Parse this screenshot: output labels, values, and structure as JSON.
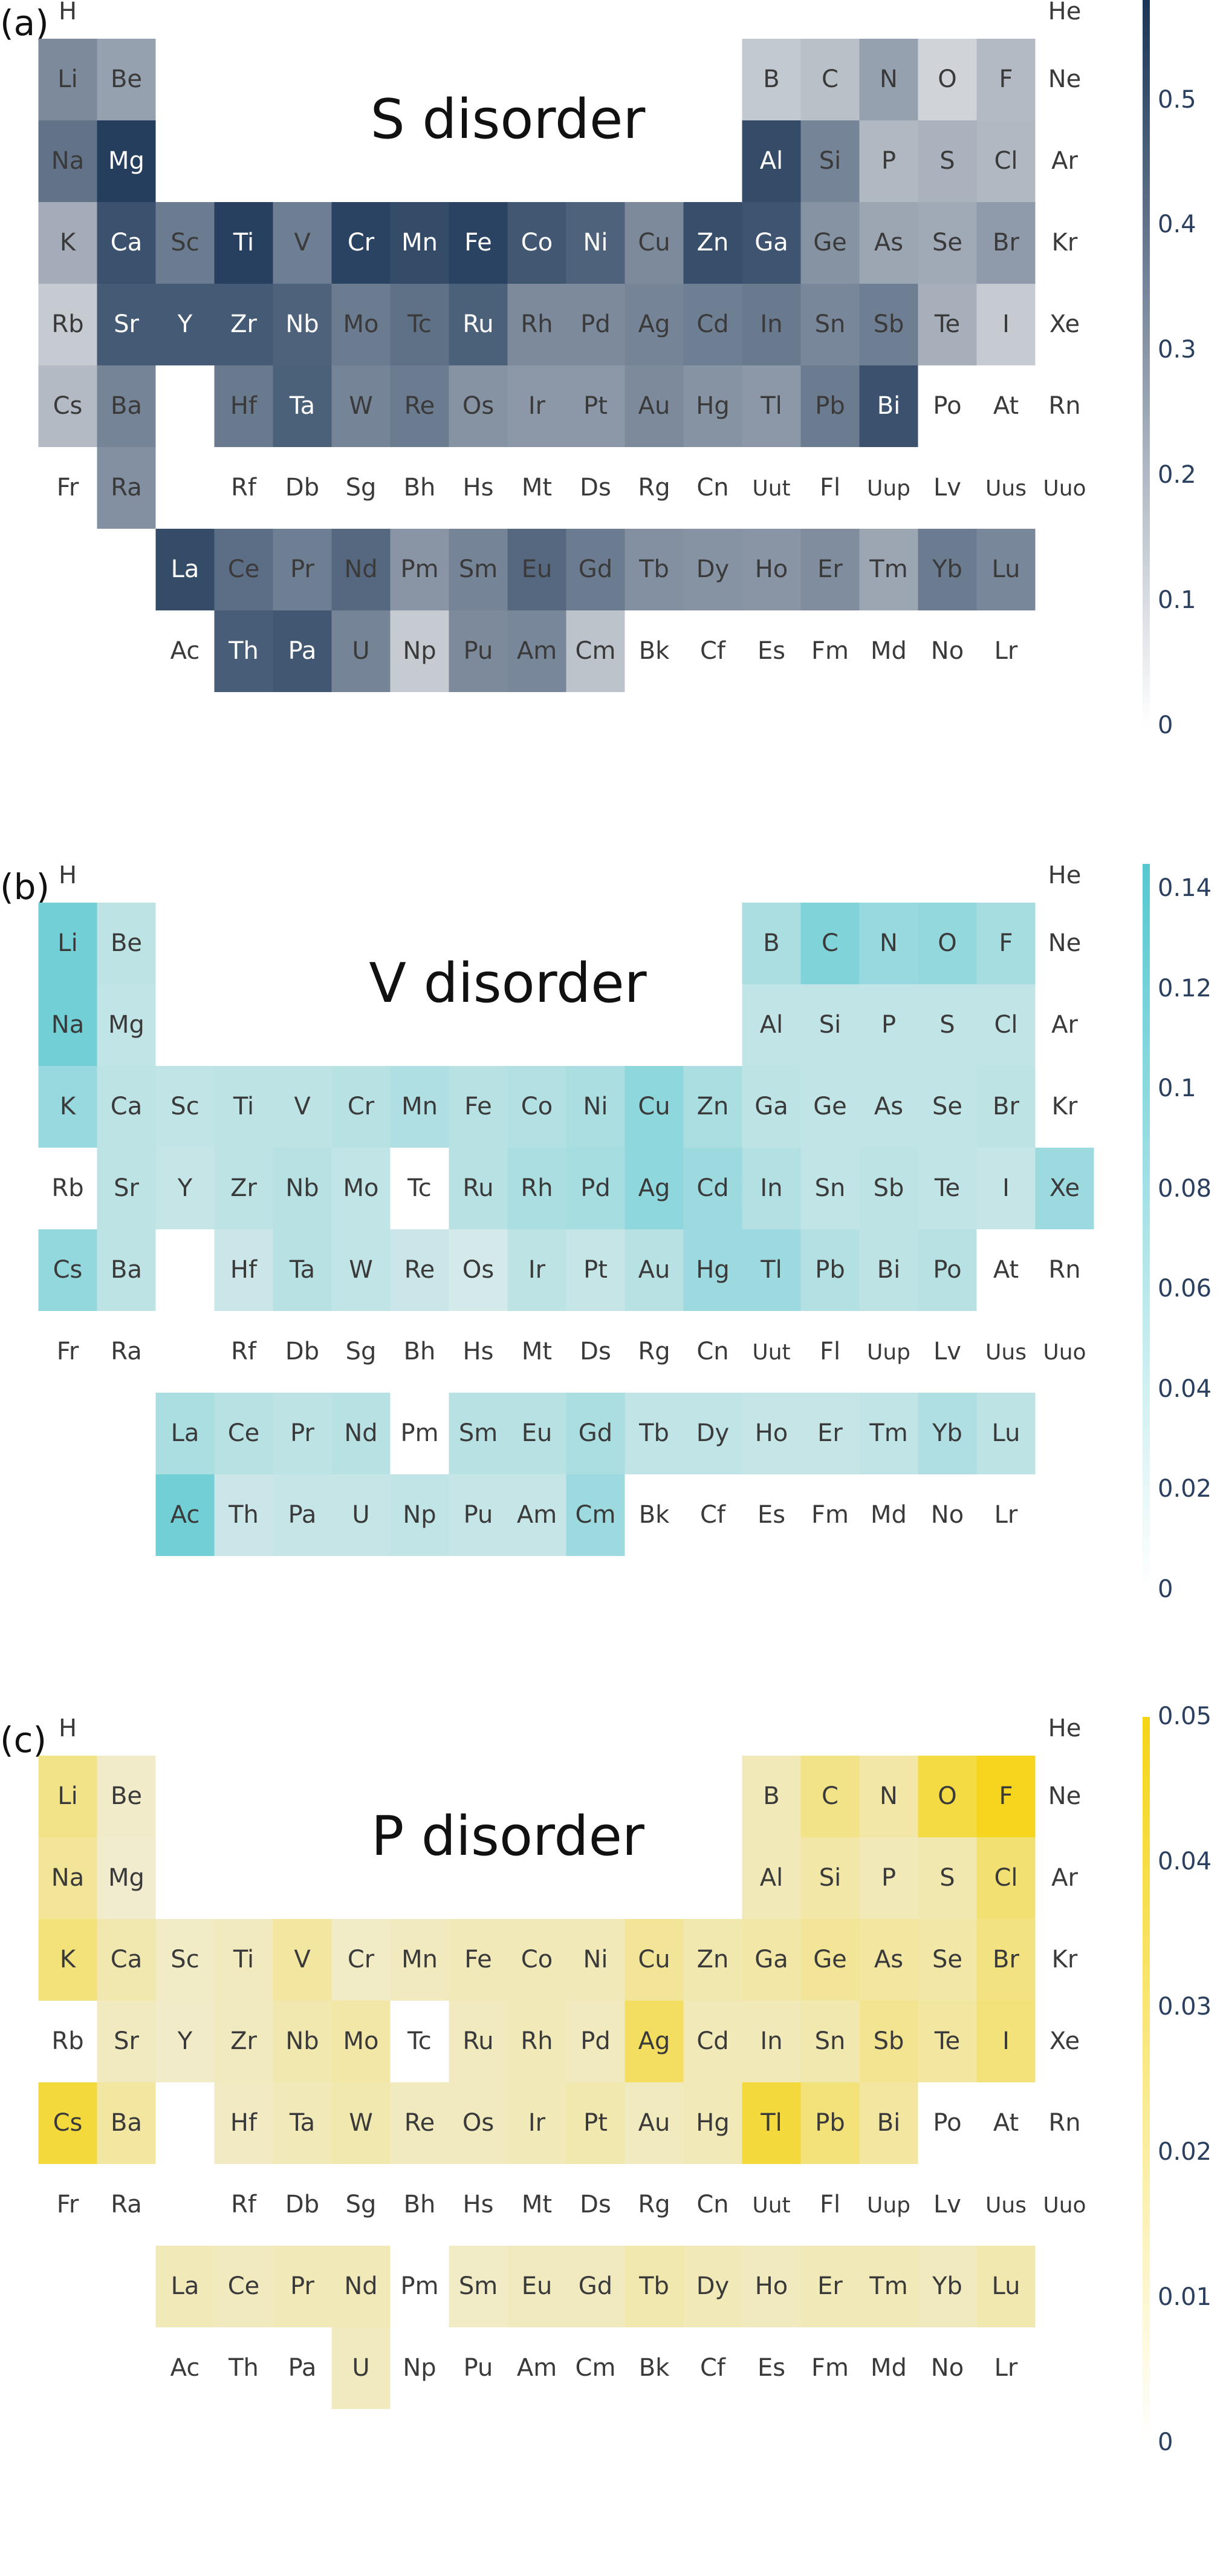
{
  "elements_order": [
    "H",
    "He",
    "Li",
    "Be",
    "B",
    "C",
    "N",
    "O",
    "F",
    "Ne",
    "Na",
    "Mg",
    "Al",
    "Si",
    "P",
    "S",
    "Cl",
    "Ar",
    "K",
    "Ca",
    "Sc",
    "Ti",
    "V",
    "Cr",
    "Mn",
    "Fe",
    "Co",
    "Ni",
    "Cu",
    "Zn",
    "Ga",
    "Ge",
    "As",
    "Se",
    "Br",
    "Kr",
    "Rb",
    "Sr",
    "Y",
    "Zr",
    "Nb",
    "Mo",
    "Tc",
    "Ru",
    "Rh",
    "Pd",
    "Ag",
    "Cd",
    "In",
    "Sn",
    "Sb",
    "Te",
    "I",
    "Xe",
    "Cs",
    "Ba",
    "Hf",
    "Ta",
    "W",
    "Re",
    "Os",
    "Ir",
    "Pt",
    "Au",
    "Hg",
    "Tl",
    "Pb",
    "Bi",
    "Po",
    "At",
    "Rn",
    "Fr",
    "Ra",
    "Rf",
    "Db",
    "Sg",
    "Bh",
    "Hs",
    "Mt",
    "Ds",
    "Rg",
    "Cn",
    "Uut",
    "Fl",
    "Uup",
    "Lv",
    "Uus",
    "Uuo",
    "La",
    "Ce",
    "Pr",
    "Nd",
    "Pm",
    "Sm",
    "Eu",
    "Gd",
    "Tb",
    "Dy",
    "Ho",
    "Er",
    "Tm",
    "Yb",
    "Lu",
    "Ac",
    "Th",
    "Pa",
    "U",
    "Np",
    "Pu",
    "Am",
    "Cm",
    "Bk",
    "Cf",
    "Es",
    "Fm",
    "Md",
    "No",
    "Lr"
  ],
  "chart_data": [
    {
      "type": "heatmap",
      "panel_label": "(a)",
      "title": "S disorder",
      "color": "#1b3556",
      "vmin": 0,
      "vmax": 0.58,
      "colorbar_ticks": [
        "0",
        "0.1",
        "0.2",
        "0.3",
        "0.4",
        "0.5"
      ],
      "colorbar_tick_values": [
        0,
        0.1,
        0.2,
        0.3,
        0.4,
        0.5
      ],
      "values": {
        "Li": 0.28,
        "Be": 0.2,
        "B": 0.06,
        "C": 0.09,
        "N": 0.2,
        "O": 0.02,
        "F": 0.11,
        "Na": 0.36,
        "Mg": 0.55,
        "Al": 0.5,
        "Si": 0.3,
        "P": 0.12,
        "S": 0.14,
        "Cl": 0.12,
        "K": 0.16,
        "Ca": 0.48,
        "Sc": 0.33,
        "Ti": 0.54,
        "V": 0.32,
        "Cr": 0.53,
        "Mn": 0.5,
        "Fe": 0.53,
        "Co": 0.46,
        "Ni": 0.42,
        "Cu": 0.28,
        "Zn": 0.49,
        "Ga": 0.47,
        "Ge": 0.25,
        "As": 0.18,
        "Se": 0.17,
        "Br": 0.22,
        "Rb": 0.05,
        "Sr": 0.45,
        "Y": 0.45,
        "Zr": 0.45,
        "Nb": 0.42,
        "Mo": 0.33,
        "Tc": 0.37,
        "Ru": 0.43,
        "Rh": 0.28,
        "Pd": 0.28,
        "Ag": 0.3,
        "Cd": 0.32,
        "In": 0.34,
        "Sn": 0.29,
        "Sb": 0.32,
        "Te": 0.15,
        "I": 0.05,
        "Cs": 0.11,
        "Ba": 0.3,
        "Hf": 0.34,
        "Ta": 0.43,
        "W": 0.3,
        "Re": 0.33,
        "Os": 0.25,
        "Ir": 0.23,
        "Pt": 0.23,
        "Au": 0.28,
        "Hg": 0.25,
        "Tl": 0.23,
        "Pb": 0.33,
        "Bi": 0.48,
        "Ra": 0.26,
        "La": 0.5,
        "Ce": 0.38,
        "Pr": 0.32,
        "Nd": 0.4,
        "Pm": 0.24,
        "Sm": 0.3,
        "Eu": 0.4,
        "Gd": 0.33,
        "Tb": 0.26,
        "Dy": 0.25,
        "Ho": 0.24,
        "Er": 0.27,
        "Tm": 0.18,
        "Yb": 0.33,
        "Lu": 0.29,
        "Th": 0.44,
        "Pa": 0.46,
        "U": 0.3,
        "Np": 0.05,
        "Pu": 0.28,
        "Am": 0.29,
        "Cm": 0.08
      }
    },
    {
      "type": "heatmap",
      "panel_label": "(b)",
      "title": "V disorder",
      "color": "#56c8d0",
      "vmin": 0,
      "vmax": 0.145,
      "colorbar_ticks": [
        "0",
        "0.02",
        "0.04",
        "0.06",
        "0.08",
        "0.1",
        "0.12",
        "0.14"
      ],
      "colorbar_tick_values": [
        0,
        0.02,
        0.04,
        0.06,
        0.08,
        0.1,
        0.12,
        0.14
      ],
      "values": {
        "Li": 0.115,
        "Be": 0.035,
        "B": 0.055,
        "C": 0.1,
        "N": 0.075,
        "O": 0.08,
        "F": 0.06,
        "Na": 0.115,
        "Mg": 0.03,
        "Al": 0.03,
        "Si": 0.03,
        "P": 0.03,
        "S": 0.03,
        "Cl": 0.03,
        "K": 0.075,
        "Ca": 0.035,
        "Sc": 0.03,
        "Ti": 0.035,
        "V": 0.035,
        "Cr": 0.04,
        "Mn": 0.05,
        "Fe": 0.04,
        "Co": 0.045,
        "Ni": 0.055,
        "Cu": 0.085,
        "Zn": 0.055,
        "Ga": 0.035,
        "Ge": 0.03,
        "As": 0.03,
        "Se": 0.03,
        "Br": 0.035,
        "Sr": 0.035,
        "Y": 0.025,
        "Zr": 0.035,
        "Nb": 0.04,
        "Mo": 0.03,
        "Tc": 0.0,
        "Ru": 0.04,
        "Rh": 0.055,
        "Pd": 0.06,
        "Ag": 0.085,
        "Cd": 0.07,
        "In": 0.045,
        "Sn": 0.03,
        "Sb": 0.035,
        "Te": 0.03,
        "I": 0.025,
        "Xe": 0.07,
        "Cs": 0.08,
        "Ba": 0.035,
        "Hf": 0.02,
        "Ta": 0.04,
        "W": 0.03,
        "Re": 0.02,
        "Os": 0.01,
        "Ir": 0.035,
        "Pt": 0.025,
        "Au": 0.04,
        "Hg": 0.07,
        "Tl": 0.07,
        "Pb": 0.045,
        "Bi": 0.035,
        "Po": 0.04,
        "La": 0.055,
        "Ce": 0.04,
        "Pr": 0.035,
        "Nd": 0.04,
        "Pm": 0.0,
        "Sm": 0.04,
        "Eu": 0.04,
        "Gd": 0.055,
        "Tb": 0.03,
        "Dy": 0.03,
        "Ho": 0.025,
        "Er": 0.025,
        "Tm": 0.03,
        "Yb": 0.05,
        "Lu": 0.035,
        "Ac": 0.115,
        "Th": 0.02,
        "Pa": 0.025,
        "U": 0.025,
        "Np": 0.03,
        "Pu": 0.025,
        "Am": 0.025,
        "Cm": 0.07
      }
    },
    {
      "type": "heatmap",
      "panel_label": "(c)",
      "title": "P disorder",
      "color": "#f5d415",
      "vmin": 0,
      "vmax": 0.05,
      "colorbar_ticks": [
        "0",
        "0.01",
        "0.02",
        "0.03",
        "0.04",
        "0.05"
      ],
      "colorbar_tick_values": [
        0,
        0.01,
        0.02,
        0.03,
        0.04,
        0.05
      ],
      "values": {
        "Li": 0.02,
        "Be": 0.003,
        "B": 0.008,
        "C": 0.02,
        "N": 0.012,
        "O": 0.038,
        "F": 0.048,
        "Na": 0.016,
        "Mg": 0.002,
        "Al": 0.008,
        "Si": 0.012,
        "P": 0.008,
        "S": 0.01,
        "Cl": 0.026,
        "K": 0.024,
        "Ca": 0.01,
        "Sc": 0.004,
        "Ti": 0.006,
        "V": 0.014,
        "Cr": 0.004,
        "Mn": 0.006,
        "Fe": 0.008,
        "Co": 0.008,
        "Ni": 0.008,
        "Cu": 0.016,
        "Zn": 0.01,
        "Ga": 0.012,
        "Ge": 0.016,
        "As": 0.014,
        "Se": 0.012,
        "Br": 0.022,
        "Sr": 0.006,
        "Y": 0.003,
        "Zr": 0.006,
        "Nb": 0.01,
        "Mo": 0.012,
        "Tc": 0.0,
        "Ru": 0.006,
        "Rh": 0.008,
        "Pd": 0.006,
        "Ag": 0.03,
        "Cd": 0.008,
        "In": 0.008,
        "Sn": 0.01,
        "Sb": 0.018,
        "Te": 0.014,
        "I": 0.024,
        "Cs": 0.04,
        "Ba": 0.014,
        "Hf": 0.005,
        "Ta": 0.008,
        "W": 0.01,
        "Re": 0.006,
        "Os": 0.006,
        "Ir": 0.008,
        "Pt": 0.01,
        "Au": 0.006,
        "Hg": 0.008,
        "Tl": 0.04,
        "Pb": 0.024,
        "Bi": 0.014,
        "La": 0.008,
        "Ce": 0.006,
        "Pr": 0.008,
        "Nd": 0.008,
        "Pm": 0.0,
        "Sm": 0.004,
        "Eu": 0.006,
        "Gd": 0.006,
        "Tb": 0.01,
        "Dy": 0.008,
        "Ho": 0.006,
        "Er": 0.008,
        "Tm": 0.008,
        "Yb": 0.006,
        "Lu": 0.01,
        "U": 0.006
      }
    }
  ]
}
